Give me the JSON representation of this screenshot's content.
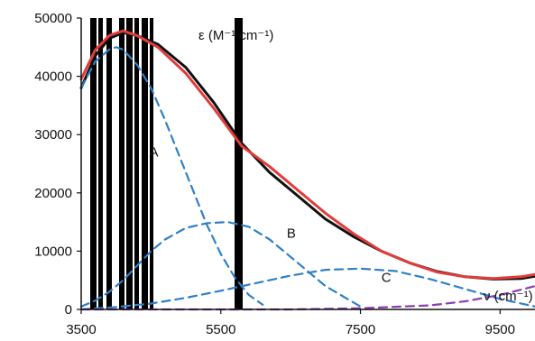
{
  "chart_data": {
    "type": "line",
    "title": "",
    "ylabel": "ε (M⁻¹ cm⁻¹)",
    "xlabel": "ν (cm⁻¹)",
    "xlim": [
      3500,
      10000
    ],
    "ylim": [
      0,
      50000
    ],
    "x_ticks": [
      3500,
      5500,
      7500,
      9500
    ],
    "y_ticks": [
      0,
      10000,
      20000,
      30000,
      40000,
      50000
    ],
    "x_tick_labels": [
      "3500",
      "5500",
      "7500",
      "9500"
    ],
    "y_tick_labels": [
      "0",
      "10000",
      "20000",
      "30000",
      "40000",
      "50000"
    ],
    "grid": false,
    "legend": "none",
    "series": [
      {
        "role": "measured",
        "color": "#111111",
        "style": "solid",
        "x": [
          3500,
          3700,
          3900,
          4100,
          4300,
          4600,
          5000,
          5400,
          5800,
          6200,
          6600,
          7000,
          7400,
          7800,
          8200,
          8600,
          9000,
          9400,
          9800,
          10000
        ],
        "y": [
          38000,
          43500,
          46500,
          47500,
          47000,
          45500,
          41500,
          35500,
          28500,
          23500,
          19500,
          15500,
          12500,
          10000,
          8000,
          6500,
          5600,
          5200,
          5300,
          5700
        ]
      },
      {
        "role": "fit-sum",
        "color": "#e23b3b",
        "style": "solid",
        "x": [
          3500,
          3700,
          3900,
          4100,
          4300,
          4600,
          5000,
          5400,
          5800,
          6200,
          6600,
          7000,
          7400,
          7800,
          8200,
          8600,
          9000,
          9400,
          9800,
          10000
        ],
        "y": [
          39500,
          44500,
          47000,
          47800,
          47000,
          45000,
          40500,
          34500,
          28000,
          24500,
          20500,
          16500,
          13000,
          10000,
          8000,
          6400,
          5600,
          5300,
          5600,
          6000
        ]
      },
      {
        "name": "A",
        "color": "#2f80c8",
        "style": "dashed",
        "x": [
          3500,
          3700,
          3900,
          4100,
          4300,
          4500,
          4700,
          5000,
          5300,
          5600,
          5900,
          6200,
          6600,
          7000,
          7500
        ],
        "y": [
          500,
          1500,
          3000,
          5000,
          7500,
          10000,
          12000,
          14000,
          14800,
          15000,
          14200,
          12000,
          8000,
          4000,
          500
        ]
      },
      {
        "name": "B",
        "color": "#2f80c8",
        "style": "dashed",
        "x": [
          3500,
          4000,
          4500,
          5000,
          5500,
          6000,
          6500,
          7000,
          7500,
          8000,
          8500,
          9000,
          9500,
          10000
        ],
        "y": [
          0,
          400,
          1000,
          2000,
          3200,
          4500,
          5800,
          6800,
          7000,
          6600,
          5200,
          3500,
          1800,
          500
        ]
      },
      {
        "name": "C",
        "color": "#2f80c8",
        "style": "dashed",
        "x": [
          3500,
          3700,
          3900,
          4000,
          4100,
          4300,
          4500,
          4700,
          4900,
          5100,
          5300,
          5500,
          5700,
          5900,
          6100
        ],
        "y": [
          38000,
          42500,
          44600,
          45000,
          44600,
          42000,
          38000,
          32500,
          26500,
          20500,
          14500,
          9500,
          5500,
          2500,
          800
        ]
      },
      {
        "role": "baseline",
        "color": "#8a3fb0",
        "style": "dashed",
        "x": [
          3500,
          5000,
          6500,
          7500,
          8500,
          9000,
          9500,
          10000
        ],
        "y": [
          0,
          0,
          0,
          200,
          700,
          1400,
          2500,
          4000
        ]
      }
    ],
    "annotations": [
      {
        "text": "A",
        "x": 4540,
        "y": 26200
      },
      {
        "text": "B",
        "x": 6510,
        "y": 12300
      },
      {
        "text": "C",
        "x": 7870,
        "y": 4700
      }
    ]
  }
}
